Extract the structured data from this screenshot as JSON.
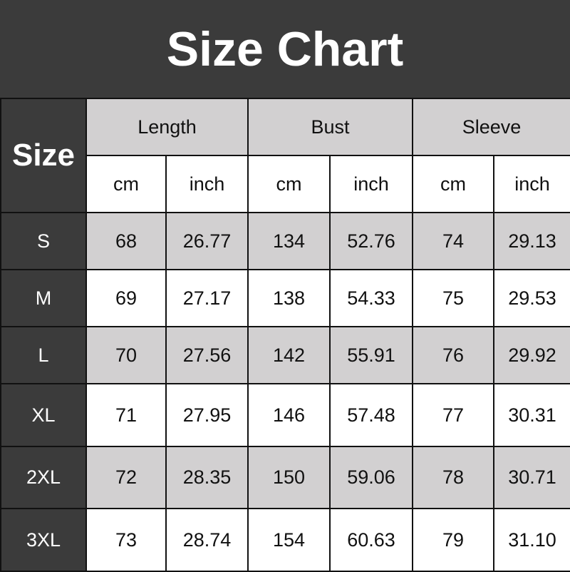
{
  "title": "Size Chart",
  "chart_data": {
    "type": "table",
    "row_header_label": "Size",
    "groups": [
      "Length",
      "Bust",
      "Sleeve"
    ],
    "units": [
      "cm",
      "inch",
      "cm",
      "inch",
      "cm",
      "inch"
    ],
    "rows": [
      {
        "size": "S",
        "values": [
          "68",
          "26.77",
          "134",
          "52.76",
          "74",
          "29.13"
        ]
      },
      {
        "size": "M",
        "values": [
          "69",
          "27.17",
          "138",
          "54.33",
          "75",
          "29.53"
        ]
      },
      {
        "size": "L",
        "values": [
          "70",
          "27.56",
          "142",
          "55.91",
          "76",
          "29.92"
        ]
      },
      {
        "size": "XL",
        "values": [
          "71",
          "27.95",
          "146",
          "57.48",
          "77",
          "30.31"
        ]
      },
      {
        "size": "2XL",
        "values": [
          "72",
          "28.35",
          "150",
          "59.06",
          "78",
          "30.71"
        ]
      },
      {
        "size": "3XL",
        "values": [
          "73",
          "28.74",
          "154",
          "60.63",
          "79",
          "31.10"
        ]
      }
    ]
  },
  "colors": {
    "dark": "#3b3b3b",
    "gray_row": "#d2d0d1",
    "white_row": "#ffffff"
  }
}
